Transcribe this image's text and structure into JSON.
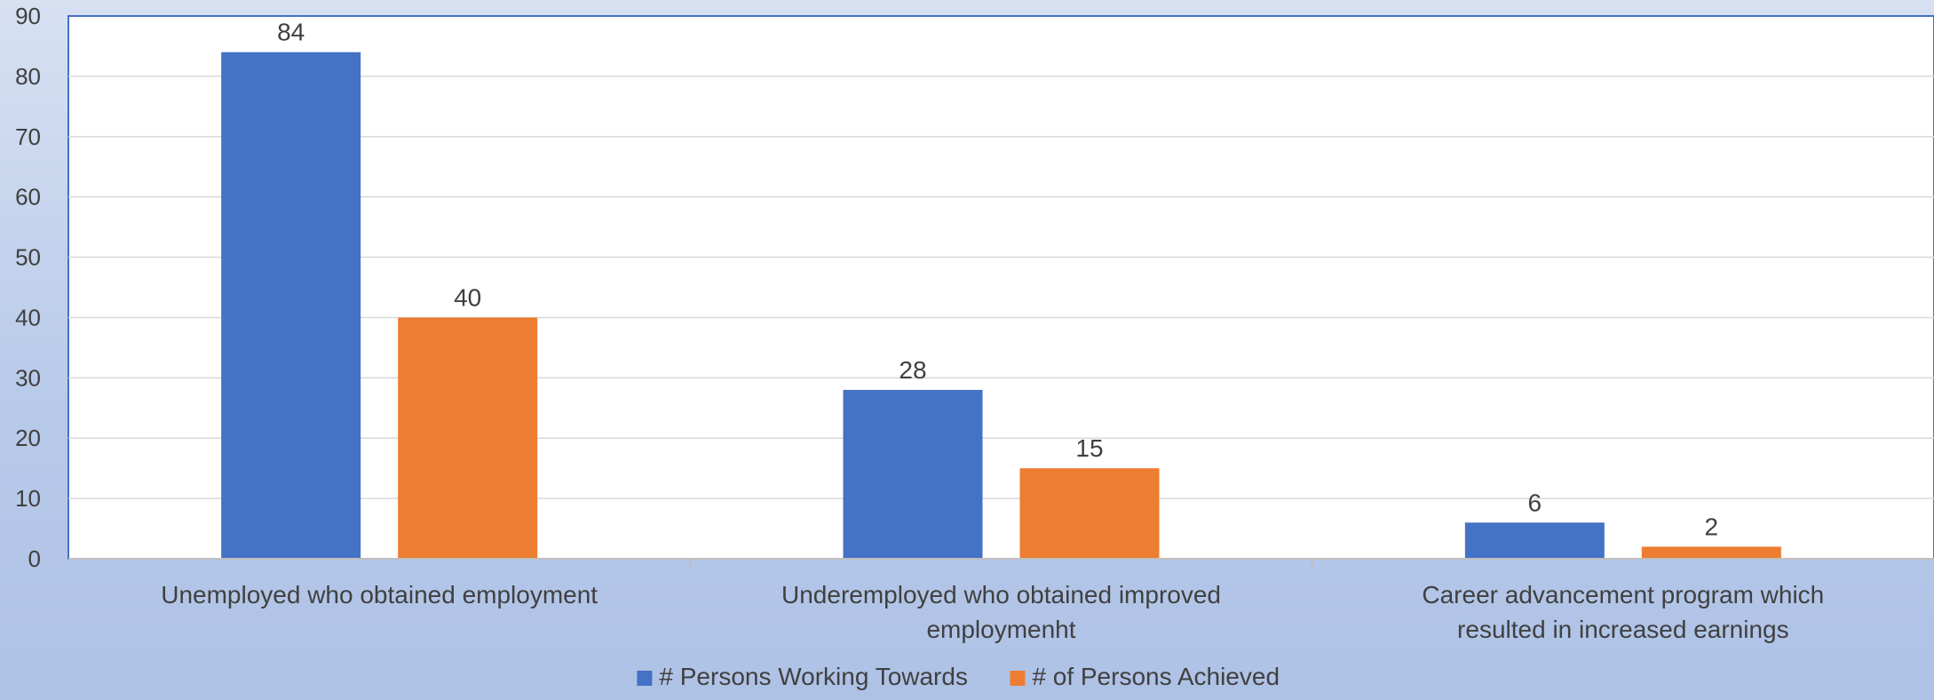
{
  "chart_data": {
    "type": "bar",
    "title": "",
    "xlabel": "",
    "ylabel": "",
    "ylim": [
      0,
      90
    ],
    "ytick_step": 10,
    "grid": true,
    "legend_position": "bottom",
    "categories": [
      "Unemployed who obtained employment",
      "Underemployed who obtained improved employmenht",
      "Career advancement program which resulted in increased earnings"
    ],
    "series": [
      {
        "name": "# Persons Working Towards",
        "values": [
          84,
          28,
          6
        ],
        "color": "#4472c4"
      },
      {
        "name": "# of Persons Achieved",
        "values": [
          40,
          15,
          2
        ],
        "color": "#ed7d31"
      }
    ]
  }
}
